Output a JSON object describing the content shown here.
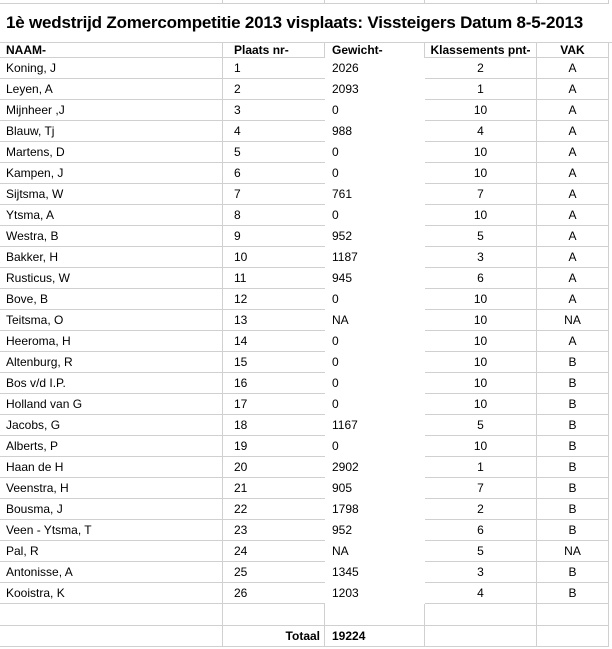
{
  "title": "1è wedstrijd Zomercompetitie 2013 visplaats: Vissteigers Datum 8-5-2013",
  "columns": [
    {
      "key": "naam",
      "label": "NAAM-"
    },
    {
      "key": "plaats",
      "label": "Plaats nr-"
    },
    {
      "key": "gewicht",
      "label": "Gewicht-"
    },
    {
      "key": "pnt",
      "label": "Klassements pnt-"
    },
    {
      "key": "vak",
      "label": "VAK"
    }
  ],
  "rows": [
    {
      "naam": "Koning, J",
      "plaats": "1",
      "gewicht": "2026",
      "pnt": "2",
      "vak": "A"
    },
    {
      "naam": "Leyen, A",
      "plaats": "2",
      "gewicht": "2093",
      "pnt": "1",
      "vak": "A"
    },
    {
      "naam": "Mijnheer ,J",
      "plaats": "3",
      "gewicht": "0",
      "pnt": "10",
      "vak": "A"
    },
    {
      "naam": "Blauw, Tj",
      "plaats": "4",
      "gewicht": "988",
      "pnt": "4",
      "vak": "A"
    },
    {
      "naam": "Martens, D",
      "plaats": "5",
      "gewicht": "0",
      "pnt": "10",
      "vak": "A"
    },
    {
      "naam": "Kampen, J",
      "plaats": "6",
      "gewicht": "0",
      "pnt": "10",
      "vak": "A"
    },
    {
      "naam": "Sijtsma, W",
      "plaats": "7",
      "gewicht": "761",
      "pnt": "7",
      "vak": "A"
    },
    {
      "naam": "Ytsma, A",
      "plaats": "8",
      "gewicht": "0",
      "pnt": "10",
      "vak": "A"
    },
    {
      "naam": "Westra, B",
      "plaats": "9",
      "gewicht": "952",
      "pnt": "5",
      "vak": "A"
    },
    {
      "naam": "Bakker, H",
      "plaats": "10",
      "gewicht": "1187",
      "pnt": "3",
      "vak": "A"
    },
    {
      "naam": "Rusticus, W",
      "plaats": "11",
      "gewicht": "945",
      "pnt": "6",
      "vak": "A"
    },
    {
      "naam": "Bove, B",
      "plaats": "12",
      "gewicht": "0",
      "pnt": "10",
      "vak": "A"
    },
    {
      "naam": "Teitsma, O",
      "plaats": "13",
      "gewicht": "NA",
      "pnt": "10",
      "vak": "NA"
    },
    {
      "naam": "Heeroma, H",
      "plaats": "14",
      "gewicht": "0",
      "pnt": "10",
      "vak": "A"
    },
    {
      "naam": "Altenburg, R",
      "plaats": "15",
      "gewicht": "0",
      "pnt": "10",
      "vak": "B"
    },
    {
      "naam": "Bos v/d I.P.",
      "plaats": "16",
      "gewicht": "0",
      "pnt": "10",
      "vak": "B"
    },
    {
      "naam": "Holland van G",
      "plaats": "17",
      "gewicht": "0",
      "pnt": "10",
      "vak": "B"
    },
    {
      "naam": "Jacobs, G",
      "plaats": "18",
      "gewicht": "1167",
      "pnt": "5",
      "vak": "B"
    },
    {
      "naam": "Alberts, P",
      "plaats": "19",
      "gewicht": "0",
      "pnt": "10",
      "vak": "B"
    },
    {
      "naam": "Haan de H",
      "plaats": "20",
      "gewicht": "2902",
      "pnt": "1",
      "vak": "B"
    },
    {
      "naam": "Veenstra, H",
      "plaats": "21",
      "gewicht": "905",
      "pnt": "7",
      "vak": "B"
    },
    {
      "naam": "Bousma, J",
      "plaats": "22",
      "gewicht": "1798",
      "pnt": "2",
      "vak": "B"
    },
    {
      "naam": "Veen - Ytsma, T",
      "plaats": "23",
      "gewicht": "952",
      "pnt": "6",
      "vak": "B"
    },
    {
      "naam": "Pal, R",
      "plaats": "24",
      "gewicht": "NA",
      "pnt": "5",
      "vak": "NA"
    },
    {
      "naam": "Antonisse, A",
      "plaats": "25",
      "gewicht": "1345",
      "pnt": "3",
      "vak": "B"
    },
    {
      "naam": "Kooistra, K",
      "plaats": "26",
      "gewicht": "1203",
      "pnt": "4",
      "vak": "B"
    }
  ],
  "footer": {
    "label": "Totaal",
    "value": "19224"
  },
  "colors": {
    "gridline": "#d0d0d0",
    "text": "#000000",
    "background": "#ffffff"
  }
}
